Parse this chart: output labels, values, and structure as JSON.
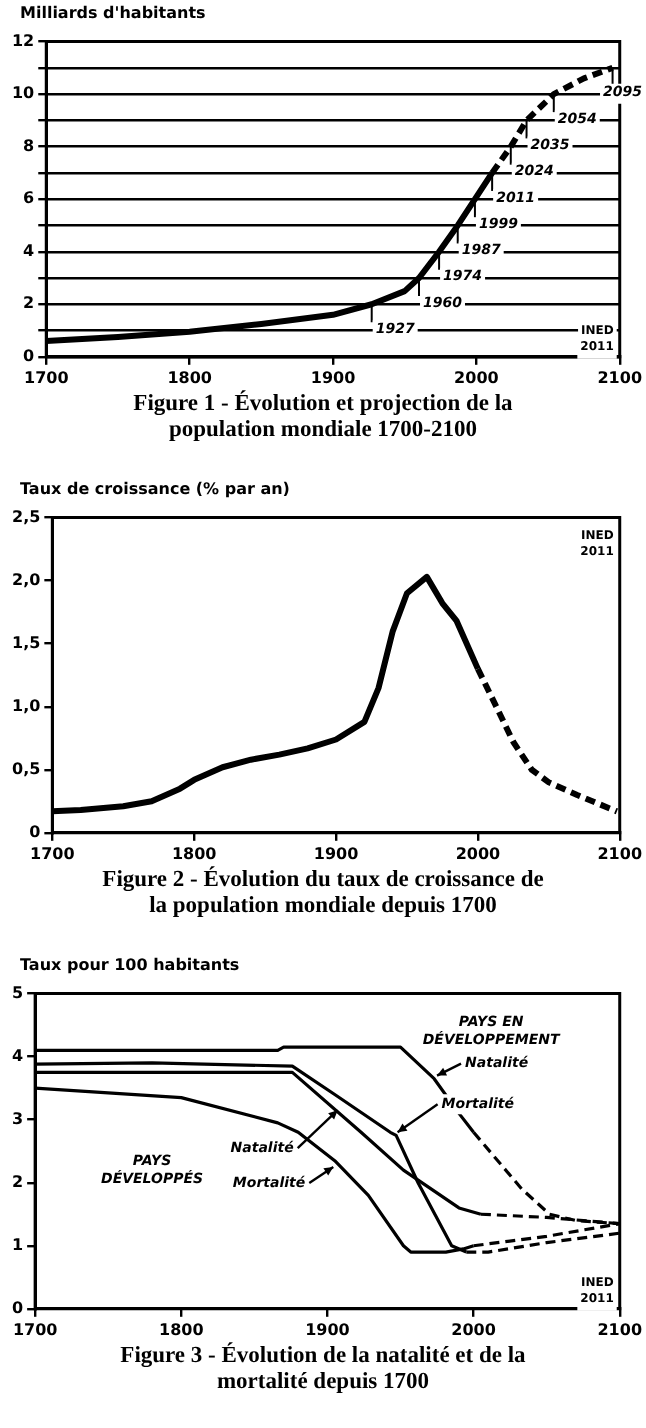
{
  "chart_data": [
    {
      "type": "line",
      "title": "Figure 1 - Évolution et projection de la population mondiale 1700-2100",
      "ylabel": "Milliards d'habitants",
      "xlim": [
        1700,
        2100
      ],
      "xticks": [
        1700,
        1800,
        1900,
        2000,
        2100
      ],
      "ylim": [
        0,
        12
      ],
      "yticks": [
        0,
        {
          "value": 1,
          "label": null
        },
        2,
        {
          "value": 3,
          "label": null
        },
        4,
        {
          "value": 5,
          "label": null
        },
        6,
        {
          "value": 7,
          "label": null
        },
        8,
        {
          "value": 9,
          "label": null
        },
        10,
        {
          "value": 11,
          "label": null
        },
        12
      ],
      "grid": "y",
      "legend": false,
      "series": [
        {
          "type": "line",
          "color": "#000000",
          "line_style": "solid",
          "x": [
            1700,
            1750,
            1800,
            1850,
            1900,
            1927,
            1950,
            1960,
            1974,
            1987,
            1999,
            2011
          ],
          "values": [
            0.6,
            0.75,
            0.95,
            1.25,
            1.6,
            2.0,
            2.5,
            3.0,
            4.0,
            5.0,
            6.0,
            7.0
          ]
        },
        {
          "type": "line",
          "color": "#000000",
          "line_style": "dashed",
          "x": [
            2011,
            2024,
            2035,
            2054,
            2075,
            2095
          ],
          "values": [
            7.0,
            8.0,
            9.0,
            10.0,
            10.6,
            11.0
          ]
        }
      ],
      "annotations": [
        {
          "text": "1927",
          "x": 1927,
          "y": 2
        },
        {
          "text": "1960",
          "x": 1960,
          "y": 3
        },
        {
          "text": "1974",
          "x": 1974,
          "y": 4
        },
        {
          "text": "1987",
          "x": 1987,
          "y": 5
        },
        {
          "text": "1999",
          "x": 1999,
          "y": 6
        },
        {
          "text": "2011",
          "x": 2011,
          "y": 7
        },
        {
          "text": "2024",
          "x": 2024,
          "y": 8
        },
        {
          "text": "2035",
          "x": 2035,
          "y": 9
        },
        {
          "text": "2054",
          "x": 2054,
          "y": 10
        },
        {
          "text": "2095",
          "x": 2095,
          "y": 11
        },
        "INED 2011"
      ]
    },
    {
      "type": "line",
      "title": "Figure 2 - Évolution du taux de croissance de la population mondiale depuis 1700",
      "ylabel": "Taux de croissance (% par an)",
      "xlim": [
        1700,
        2100
      ],
      "xticks": [
        1700,
        1800,
        1900,
        2000,
        2100
      ],
      "ylim": [
        0,
        2.5
      ],
      "yticks": [
        0,
        {
          "value": 0.5,
          "label": "0,5"
        },
        {
          "value": 1,
          "label": "1,0"
        },
        {
          "value": 1.5,
          "label": "1,5"
        },
        {
          "value": 2,
          "label": "2,0"
        },
        {
          "value": 2.5,
          "label": "2,5"
        }
      ],
      "grid": false,
      "legend": false,
      "series": [
        {
          "type": "line",
          "color": "#000000",
          "line_style": "solid",
          "x": [
            1700,
            1720,
            1750,
            1770,
            1790,
            1800,
            1820,
            1840,
            1860,
            1880,
            1900,
            1920,
            1930,
            1940,
            1950,
            1964,
            1975,
            1985,
            2000
          ],
          "values": [
            0.17,
            0.18,
            0.21,
            0.25,
            0.35,
            0.42,
            0.52,
            0.58,
            0.62,
            0.67,
            0.74,
            0.88,
            1.15,
            1.6,
            1.9,
            2.03,
            1.82,
            1.68,
            1.3
          ]
        },
        {
          "type": "line",
          "color": "#000000",
          "line_style": "dashed",
          "x": [
            2000,
            2013,
            2025,
            2038,
            2050,
            2070,
            2085,
            2098
          ],
          "values": [
            1.3,
            1.0,
            0.72,
            0.5,
            0.4,
            0.3,
            0.23,
            0.17
          ]
        }
      ],
      "annotations": [
        "INED 2011"
      ]
    },
    {
      "type": "line",
      "title": "Figure 3 - Évolution de la natalité et de la mortalité depuis 1700",
      "ylabel": "Taux pour 100 habitants",
      "xlim": [
        1700,
        2100
      ],
      "xticks": [
        1700,
        1800,
        1900,
        2000,
        2100
      ],
      "ylim": [
        0,
        5
      ],
      "yticks": [
        0,
        1,
        2,
        3,
        4,
        5
      ],
      "grid": false,
      "legend": false,
      "series": [
        {
          "type": "line",
          "color": "#000000",
          "line_style": "solid",
          "x": [
            1700,
            1866,
            1870,
            1950,
            1973,
            1990,
            2000
          ],
          "values": [
            4.1,
            4.1,
            4.15,
            4.15,
            3.65,
            3.1,
            2.8
          ]
        },
        {
          "type": "line",
          "color": "#000000",
          "line_style": "dashed",
          "x": [
            2000,
            2033,
            2052,
            2070,
            2100
          ],
          "values": [
            2.8,
            1.9,
            1.5,
            1.4,
            1.35
          ]
        },
        {
          "type": "line",
          "color": "#000000",
          "line_style": "solid",
          "x": [
            1700,
            1780,
            1876,
            1905,
            1943,
            1947,
            1962,
            1985,
            1995
          ],
          "values": [
            3.88,
            3.9,
            3.85,
            3.4,
            2.8,
            2.75,
            2.0,
            1.0,
            0.9
          ]
        },
        {
          "type": "line",
          "color": "#000000",
          "line_style": "dashed",
          "x": [
            1995,
            2010,
            2050,
            2100
          ],
          "values": [
            0.9,
            0.9,
            1.05,
            1.2
          ]
        },
        {
          "type": "line",
          "color": "#000000",
          "line_style": "solid",
          "x": [
            1700,
            1876,
            1923,
            1952,
            1990,
            2005
          ],
          "values": [
            3.75,
            3.75,
            2.8,
            2.2,
            1.6,
            1.5
          ]
        },
        {
          "type": "line",
          "color": "#000000",
          "line_style": "dashed",
          "x": [
            2005,
            2050,
            2100
          ],
          "values": [
            1.5,
            1.45,
            1.35
          ]
        },
        {
          "type": "line",
          "color": "#000000",
          "line_style": "solid",
          "x": [
            1700,
            1800,
            1866,
            1880,
            1905,
            1928,
            1952,
            1957,
            1981,
            1993,
            2000
          ],
          "values": [
            3.5,
            3.35,
            2.95,
            2.8,
            2.35,
            1.8,
            1.0,
            0.9,
            0.9,
            0.95,
            1.0
          ]
        },
        {
          "type": "line",
          "color": "#000000",
          "line_style": "dashed",
          "x": [
            2000,
            2050,
            2100
          ],
          "values": [
            1.0,
            1.15,
            1.35
          ]
        }
      ],
      "annotations": [
        "PAYS EN DÉVELOPPEMENT",
        {
          "text": "Natalité",
          "x": 1975,
          "y": 3.7
        },
        {
          "text": "Mortalité",
          "x": 1948,
          "y": 2.8
        },
        "PAYS DÉVELOPPÉS",
        {
          "text": "Natalité",
          "x": 1907,
          "y": 3.15
        },
        {
          "text": "Mortalité",
          "x": 1904,
          "y": 2.25
        },
        "INED 2011"
      ]
    }
  ]
}
